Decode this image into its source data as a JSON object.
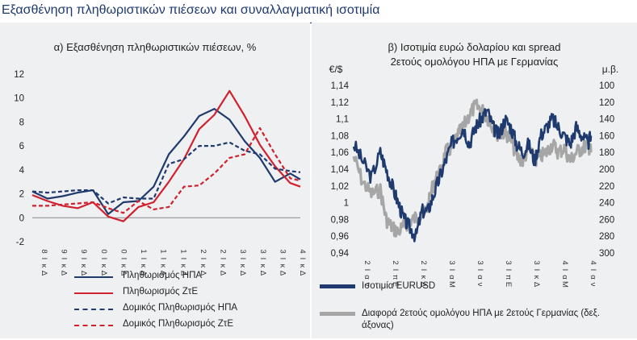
{
  "page": {
    "title": "Εξασθένηση πληθωριστικών πιέσεων και συναλλαγματική ισοτιμία"
  },
  "left": {
    "title": "α) Εξασθένηση πληθωριστικών πιέσεων, %",
    "legend": [
      {
        "name": "Πληθωρισμός ΗΠΑ",
        "color": "#1f3a6e",
        "dash": false
      },
      {
        "name": "Πληθωρισμός ΖτΕ",
        "color": "#d0212e",
        "dash": false
      },
      {
        "name": "Δομικός Πληθωρισμός ΗΠΑ",
        "color": "#1f3a6e",
        "dash": true
      },
      {
        "name": "Δομικός Πληθωρισμός ΖτΕ",
        "color": "#d0212e",
        "dash": true
      }
    ]
  },
  "right": {
    "title_line1": "β) Ισοτιμία ευρώ δολαρίου και spread",
    "title_line2": "2ετούς ομολόγου ΗΠΑ με Γερμανίας",
    "left_unit": "€/$",
    "right_unit": "μ.β.",
    "legend": [
      {
        "name": "Ισοτιμία EURUSD",
        "color": "#1f3a6e"
      },
      {
        "name": "Διαφορά 2ετούς ομολόγου ΗΠΑ με 2ετούς Γερμανίας (δεξ. άξονας)",
        "color": "#a6a6a6"
      }
    ]
  },
  "chart_data": [
    {
      "type": "line",
      "title": "α) Εξασθένηση πληθωριστικών πιέσεων, %",
      "ylim": [
        -2,
        12
      ],
      "yticks": [
        -2,
        0,
        2,
        4,
        6,
        8,
        10,
        12
      ],
      "xtick_labels": [
        "8 Ι κ Δ",
        "9 Ι κ Δ",
        "9 Ι κ Δ",
        "0 Ι κ Δ",
        "0 Ι κ Δ",
        "1 Ι κ Δ",
        "1 Ι κ Δ",
        "1 Ι κ Δ",
        "2 Ι κ Δ",
        "2 Ι κ Δ",
        "3 Ι κ Δ",
        "3 Ι κ Δ",
        "3 Ι κ Δ",
        "4 Ι κ Δ"
      ],
      "x": [
        2018.9,
        2019.2,
        2019.5,
        2019.8,
        2020.1,
        2020.4,
        2020.7,
        2021.0,
        2021.3,
        2021.6,
        2021.9,
        2022.2,
        2022.5,
        2022.8,
        2023.1,
        2023.4,
        2023.7,
        2024.0,
        2024.2
      ],
      "series": [
        {
          "name": "Πληθωρισμός ΗΠΑ",
          "color": "#1f3a6e",
          "dash": false,
          "values": [
            2.2,
            1.6,
            1.8,
            2.1,
            2.3,
            0.3,
            1.3,
            1.4,
            2.6,
            5.3,
            6.8,
            8.5,
            9.1,
            8.2,
            6.4,
            5.0,
            3.0,
            3.7,
            3.2
          ]
        },
        {
          "name": "Πληθωρισμός ΖτΕ",
          "color": "#d0212e",
          "dash": false,
          "values": [
            1.9,
            1.4,
            1.0,
            0.8,
            1.3,
            0.1,
            -0.3,
            0.9,
            1.3,
            3.0,
            4.9,
            7.4,
            8.6,
            10.6,
            8.5,
            6.1,
            4.3,
            2.9,
            2.6
          ]
        },
        {
          "name": "Δομικός Πληθωρισμός ΗΠΑ",
          "color": "#1f3a6e",
          "dash": true,
          "values": [
            2.2,
            2.1,
            2.2,
            2.3,
            2.3,
            1.2,
            1.7,
            1.6,
            1.6,
            4.5,
            4.9,
            6.0,
            6.0,
            6.3,
            5.6,
            5.3,
            4.1,
            3.9,
            3.8
          ]
        },
        {
          "name": "Δομικός Πληθωρισμός ΖτΕ",
          "color": "#d0212e",
          "dash": true,
          "values": [
            1.0,
            1.0,
            1.1,
            1.2,
            1.3,
            0.8,
            0.4,
            1.4,
            0.7,
            0.9,
            2.6,
            2.7,
            3.7,
            5.0,
            5.3,
            7.5,
            5.3,
            3.3,
            3.1
          ]
        }
      ]
    },
    {
      "type": "line",
      "title": "β) Ισοτιμία ευρώ δολαρίου και spread 2ετούς ομολόγου ΗΠΑ με Γερμανίας",
      "ylim": [
        0.94,
        1.14
      ],
      "y2lim": [
        300,
        100
      ],
      "y2_reversed": true,
      "yticks": [
        0.94,
        0.96,
        0.98,
        1,
        1.02,
        1.04,
        1.06,
        1.08,
        1.1,
        1.12,
        1.14
      ],
      "yticklabels": [
        "0,94",
        "0,96",
        "0,98",
        "1",
        "1,02",
        "1,04",
        "1,06",
        "1,08",
        "1,1",
        "1,12",
        "1,14"
      ],
      "y2ticks": [
        100,
        120,
        140,
        160,
        180,
        200,
        220,
        240,
        260,
        280,
        300
      ],
      "xtick_labels": [
        "2 Ι α ν",
        "2 Ι π Ε",
        "2 Ι κ Δ",
        "3 Ι α Μ",
        "3 Ι α ν",
        "3 Ι π Ε",
        "3 Ι κ Δ",
        "4 Ι α Μ",
        "4 Ι α ν"
      ],
      "x": [
        0,
        0.3,
        0.6,
        0.9,
        1.1,
        1.3,
        1.5,
        1.7,
        1.9,
        2.1,
        2.3,
        2.5,
        2.7,
        2.9,
        3.1,
        3.3,
        3.5,
        3.7,
        3.9,
        4.1,
        4.3,
        4.5,
        4.7,
        4.9,
        5.1,
        5.3,
        5.5,
        5.7,
        5.9,
        6.1,
        6.3,
        6.5,
        6.7,
        6.9,
        7.1,
        7.3,
        7.5,
        7.7,
        7.9,
        8.0
      ],
      "series": [
        {
          "name": "Ισοτιμία EURUSD",
          "color": "#1f3a6e",
          "axis": "left",
          "values": [
            1.07,
            1.05,
            1.03,
            1.06,
            1.04,
            1.02,
            1.0,
            0.98,
            0.97,
            0.96,
            0.99,
            0.99,
            1.01,
            1.03,
            1.05,
            1.07,
            1.08,
            1.09,
            1.07,
            1.09,
            1.1,
            1.11,
            1.09,
            1.08,
            1.1,
            1.09,
            1.07,
            1.06,
            1.07,
            1.05,
            1.08,
            1.09,
            1.1,
            1.09,
            1.08,
            1.07,
            1.09,
            1.08,
            1.07,
            1.08
          ]
        },
        {
          "name": "Διαφορά 2ετούς ομολόγου ΗΠΑ με 2ετούς Γερμανίας (δεξ. άξονας)",
          "color": "#a6a6a6",
          "axis": "right",
          "values": [
            185,
            215,
            230,
            225,
            260,
            270,
            275,
            268,
            262,
            258,
            255,
            245,
            215,
            205,
            180,
            175,
            160,
            150,
            135,
            125,
            128,
            138,
            150,
            160,
            155,
            165,
            185,
            190,
            175,
            190,
            185,
            180,
            170,
            180,
            175,
            190,
            180,
            175,
            170,
            180
          ]
        }
      ]
    }
  ]
}
